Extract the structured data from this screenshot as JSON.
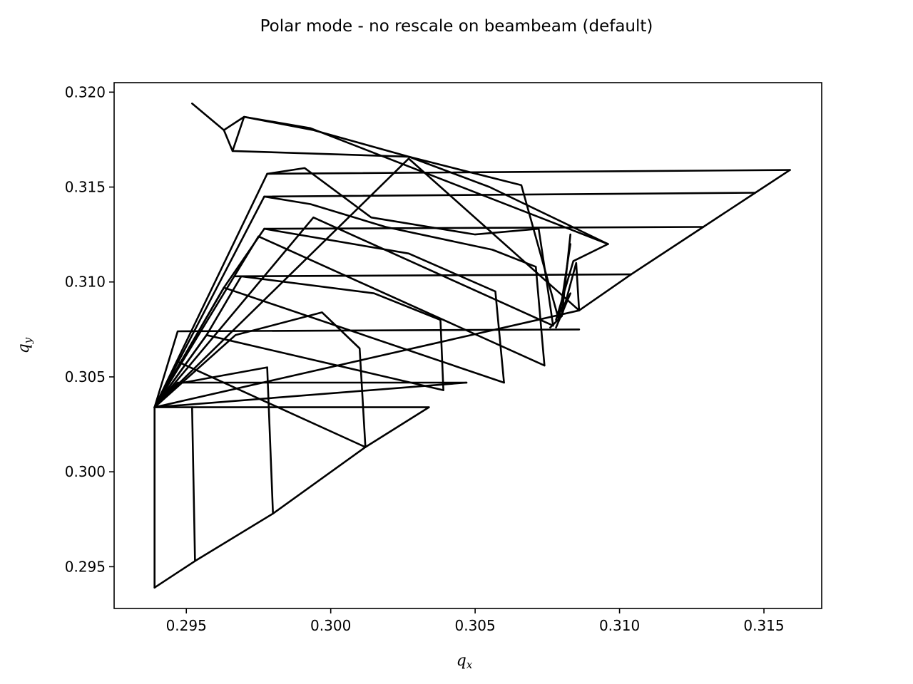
{
  "chart_data": {
    "type": "line",
    "title": "Polar mode - no rescale on beambeam (default)",
    "xlabel": {
      "base": "q",
      "sub": "x"
    },
    "ylabel": {
      "base": "q",
      "sub": "y"
    },
    "xlim": [
      0.2925,
      0.317
    ],
    "ylim": [
      0.2928,
      0.3205
    ],
    "x_ticks": [
      {
        "value": 0.295,
        "label": "0.295"
      },
      {
        "value": 0.3,
        "label": "0.300"
      },
      {
        "value": 0.305,
        "label": "0.305"
      },
      {
        "value": 0.31,
        "label": "0.310"
      },
      {
        "value": 0.315,
        "label": "0.315"
      }
    ],
    "y_ticks": [
      {
        "value": 0.295,
        "label": "0.295"
      },
      {
        "value": 0.3,
        "label": "0.300"
      },
      {
        "value": 0.305,
        "label": "0.305"
      },
      {
        "value": 0.31,
        "label": "0.310"
      },
      {
        "value": 0.315,
        "label": "0.315"
      },
      {
        "value": 0.32,
        "label": "0.320"
      }
    ],
    "grid": false,
    "line_color": "#000000",
    "series": [
      {
        "x": [
          0.2939,
          0.2953,
          0.298,
          0.3012,
          0.3034
        ],
        "y": [
          0.2939,
          0.2953,
          0.2978,
          0.3013,
          0.3034
        ]
      },
      {
        "x": [
          0.2939,
          0.3047
        ],
        "y": [
          0.3034,
          0.3047
        ]
      },
      {
        "x": [
          0.2939,
          0.3086,
          0.3104
        ],
        "y": [
          0.3034,
          0.3085,
          0.3104
        ]
      },
      {
        "x": [
          0.3104,
          0.3129,
          0.3147,
          0.3159
        ],
        "y": [
          0.3104,
          0.3129,
          0.3147,
          0.3159
        ]
      },
      {
        "x": [
          0.2939,
          0.2939
        ],
        "y": [
          0.3034,
          0.2939
        ]
      },
      {
        "x": [
          0.2953,
          0.2952
        ],
        "y": [
          0.2953,
          0.3034
        ]
      },
      {
        "x": [
          0.298,
          0.2978,
          0.2949
        ],
        "y": [
          0.2978,
          0.3055,
          0.3047
        ]
      },
      {
        "x": [
          0.2939,
          0.3034
        ],
        "y": [
          0.3034,
          0.3034
        ]
      },
      {
        "x": [
          0.2939,
          0.2947,
          0.3047
        ],
        "y": [
          0.3034,
          0.3047,
          0.3047
        ]
      },
      {
        "x": [
          0.2939,
          0.2947,
          0.3086
        ],
        "y": [
          0.3034,
          0.3074,
          0.3075
        ]
      },
      {
        "x": [
          0.2939,
          0.2957,
          0.2969,
          0.2967,
          0.3104
        ],
        "y": [
          0.3034,
          0.3072,
          0.3103,
          0.3103,
          0.3104
        ]
      },
      {
        "x": [
          0.2939,
          0.2963,
          0.2977,
          0.3129
        ],
        "y": [
          0.3034,
          0.3097,
          0.3128,
          0.3129
        ]
      },
      {
        "x": [
          0.2939,
          0.2977,
          0.3147
        ],
        "y": [
          0.3034,
          0.3145,
          0.3147
        ]
      },
      {
        "x": [
          0.2939,
          0.2978,
          0.3159
        ],
        "y": [
          0.3034,
          0.3157,
          0.3159
        ]
      },
      {
        "x": [
          0.3012,
          0.301,
          0.2997,
          0.2967,
          0.2939
        ],
        "y": [
          0.3013,
          0.3065,
          0.3084,
          0.3072,
          0.3034
        ]
      },
      {
        "x": [
          0.3039,
          0.3038,
          0.3015,
          0.2969
        ],
        "y": [
          0.3043,
          0.308,
          0.3094,
          0.3103
        ]
      },
      {
        "x": [
          0.306,
          0.3057,
          0.3027,
          0.2977
        ],
        "y": [
          0.3047,
          0.3095,
          0.3115,
          0.3128
        ]
      },
      {
        "x": [
          0.3074,
          0.3071,
          0.3056,
          0.3019,
          0.2993,
          0.2977
        ],
        "y": [
          0.3056,
          0.3108,
          0.3117,
          0.3129,
          0.3141,
          0.3145
        ]
      },
      {
        "x": [
          0.3077,
          0.3075,
          0.3072,
          0.305,
          0.3014,
          0.2991,
          0.2978
        ],
        "y": [
          0.3077,
          0.3098,
          0.3128,
          0.3125,
          0.3134,
          0.316,
          0.3157
        ]
      },
      {
        "x": [
          0.3083,
          0.3079,
          0.3066,
          0.3027,
          0.2994,
          0.297,
          0.2966
        ],
        "y": [
          0.312,
          0.308,
          0.3151,
          0.3166,
          0.318,
          0.3187,
          0.3169
        ]
      },
      {
        "x": [
          0.2939,
          0.2947,
          0.3012
        ],
        "y": [
          0.3034,
          0.3058,
          0.3013
        ]
      },
      {
        "x": [
          0.2939,
          0.2957,
          0.3039
        ],
        "y": [
          0.3034,
          0.3072,
          0.3043
        ]
      },
      {
        "x": [
          0.2939,
          0.2963,
          0.306
        ],
        "y": [
          0.3034,
          0.3097,
          0.3047
        ]
      },
      {
        "x": [
          0.2939,
          0.2975,
          0.3074
        ],
        "y": [
          0.3034,
          0.3124,
          0.3056
        ]
      },
      {
        "x": [
          0.2939,
          0.2994,
          0.3077
        ],
        "y": [
          0.3034,
          0.3134,
          0.3077
        ]
      },
      {
        "x": [
          0.2939,
          0.3027,
          0.3086
        ],
        "y": [
          0.3034,
          0.3165,
          0.3085
        ]
      },
      {
        "x": [
          0.2952,
          0.2963,
          0.297,
          0.2993,
          0.3096
        ],
        "y": [
          0.3194,
          0.318,
          0.3187,
          0.3181,
          0.312
        ]
      },
      {
        "x": [
          0.2963,
          0.2966,
          0.3027,
          0.3055,
          0.3096
        ],
        "y": [
          0.318,
          0.3169,
          0.3166,
          0.315,
          0.312
        ]
      },
      {
        "x": [
          0.3096,
          0.3084,
          0.3078
        ],
        "y": [
          0.312,
          0.3111,
          0.308
        ]
      },
      {
        "x": [
          0.3083,
          0.308,
          0.3076
        ],
        "y": [
          0.3125,
          0.3082,
          0.3076
        ]
      },
      {
        "x": [
          0.308,
          0.3085,
          0.3086
        ],
        "y": [
          0.3082,
          0.311,
          0.3085
        ]
      },
      {
        "x": [
          0.3078,
          0.3083,
          0.3079
        ],
        "y": [
          0.3076,
          0.3094,
          0.3083
        ]
      }
    ]
  }
}
